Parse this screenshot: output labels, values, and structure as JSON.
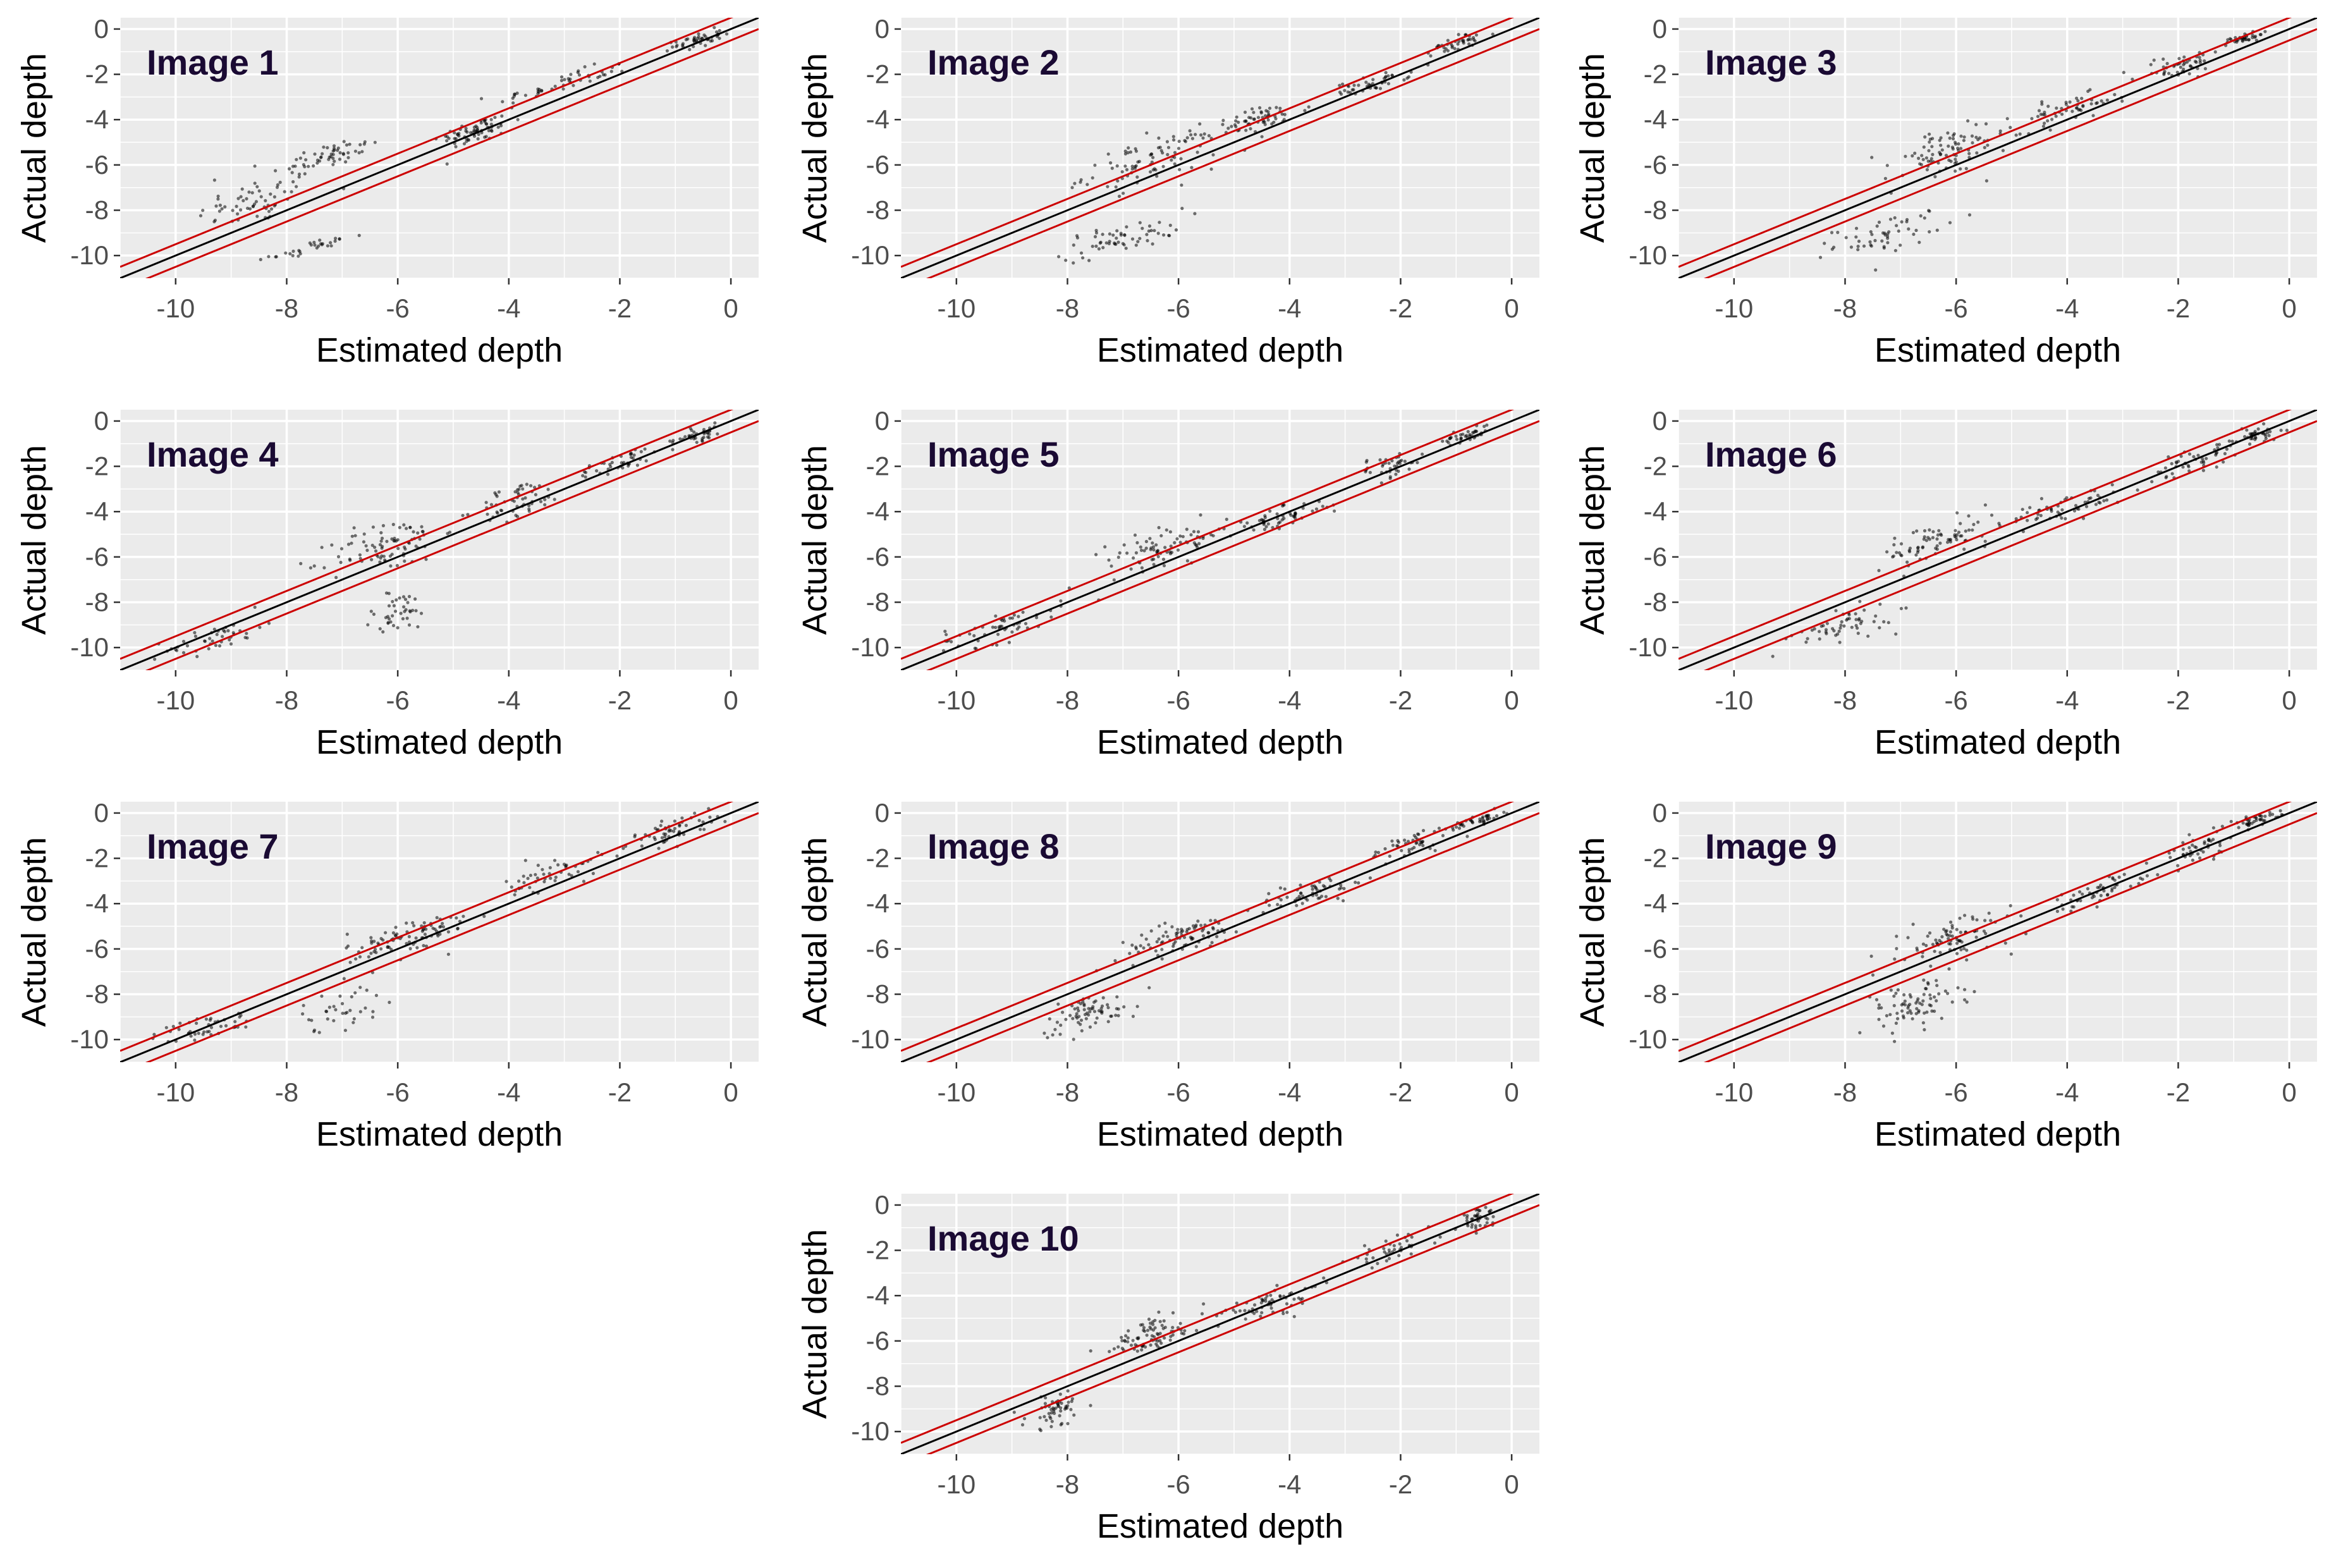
{
  "figure": {
    "x_axis_label": "Estimated depth",
    "y_axis_label": "Actual depth",
    "x_ticks": [
      -10,
      -8,
      -6,
      -4,
      -2,
      0
    ],
    "y_ticks": [
      0,
      -2,
      -4,
      -6,
      -8,
      -10
    ],
    "colors": {
      "panel_background": "#ebebeb",
      "grid": "#ffffff",
      "points": "#000000",
      "identity_line": "#000000",
      "band_lines": "#cc0000",
      "tick_text": "#4d4d4d",
      "axis_title": "#000000"
    }
  },
  "chart_data": [
    {
      "type": "scatter",
      "title": "Image 1",
      "xlabel": "Estimated depth",
      "ylabel": "Actual depth",
      "xlim": [
        -11,
        0.5
      ],
      "ylim": [
        -11,
        0.5
      ],
      "reference_lines": {
        "identity": "y = x",
        "band_offsets": [
          -0.5,
          0.5
        ]
      },
      "cloud": [
        [
          -8.5,
          -7.6,
          1.0,
          0.9,
          60
        ],
        [
          -7.3,
          -5.6,
          0.9,
          0.5,
          55
        ],
        [
          -4.6,
          -4.5,
          0.6,
          0.5,
          70
        ],
        [
          -3.0,
          -2.4,
          1.1,
          0.4,
          50
        ],
        [
          -0.6,
          -0.5,
          0.4,
          0.3,
          45
        ],
        [
          -7.5,
          -9.6,
          0.7,
          0.2,
          30
        ]
      ]
    },
    {
      "type": "scatter",
      "title": "Image 2",
      "xlabel": "Estimated depth",
      "ylabel": "Actual depth",
      "xlim": [
        -11,
        0.5
      ],
      "ylim": [
        -11,
        0.5
      ],
      "reference_lines": {
        "identity": "y = x",
        "band_offsets": [
          -0.5,
          0.5
        ]
      },
      "cloud": [
        [
          -7.0,
          -9.2,
          1.0,
          0.6,
          60
        ],
        [
          -6.5,
          -5.8,
          1.1,
          0.9,
          90
        ],
        [
          -4.5,
          -4.0,
          0.8,
          0.5,
          60
        ],
        [
          -2.5,
          -2.4,
          0.6,
          0.3,
          45
        ],
        [
          -1.0,
          -0.6,
          0.4,
          0.3,
          40
        ]
      ]
    },
    {
      "type": "scatter",
      "title": "Image 3",
      "xlabel": "Estimated depth",
      "ylabel": "Actual depth",
      "xlim": [
        -11,
        0.5
      ],
      "ylim": [
        -11,
        0.5
      ],
      "reference_lines": {
        "identity": "y = x",
        "band_offsets": [
          -0.5,
          0.5
        ]
      },
      "cloud": [
        [
          -7.2,
          -9.0,
          0.9,
          0.7,
          55
        ],
        [
          -6.2,
          -5.5,
          1.0,
          1.0,
          90
        ],
        [
          -4.0,
          -3.6,
          0.8,
          0.5,
          55
        ],
        [
          -2.0,
          -1.6,
          0.7,
          0.5,
          50
        ],
        [
          -0.8,
          -0.4,
          0.3,
          0.2,
          35
        ]
      ]
    },
    {
      "type": "scatter",
      "title": "Image 4",
      "xlabel": "Estimated depth",
      "ylabel": "Actual depth",
      "xlim": [
        -11,
        0.5
      ],
      "ylim": [
        -11,
        0.5
      ],
      "reference_lines": {
        "identity": "y = x",
        "band_offsets": [
          -0.5,
          0.5
        ]
      },
      "cloud": [
        [
          -9.3,
          -9.6,
          0.8,
          0.5,
          45
        ],
        [
          -6.2,
          -5.5,
          0.9,
          1.0,
          85
        ],
        [
          -6.0,
          -8.5,
          0.6,
          0.9,
          40
        ],
        [
          -3.8,
          -3.5,
          0.7,
          0.7,
          55
        ],
        [
          -2.0,
          -1.8,
          0.7,
          0.4,
          40
        ],
        [
          -0.6,
          -0.6,
          0.4,
          0.3,
          40
        ]
      ]
    },
    {
      "type": "scatter",
      "title": "Image 5",
      "xlabel": "Estimated depth",
      "ylabel": "Actual depth",
      "xlim": [
        -11,
        0.5
      ],
      "ylim": [
        -11,
        0.5
      ],
      "reference_lines": {
        "identity": "y = x",
        "band_offsets": [
          -0.5,
          0.5
        ]
      },
      "cloud": [
        [
          -9.2,
          -9.1,
          1.0,
          0.6,
          55
        ],
        [
          -6.2,
          -5.5,
          1.0,
          0.7,
          80
        ],
        [
          -4.2,
          -4.3,
          0.8,
          0.4,
          55
        ],
        [
          -2.2,
          -2.0,
          0.6,
          0.5,
          40
        ],
        [
          -0.8,
          -0.6,
          0.4,
          0.3,
          40
        ]
      ]
    },
    {
      "type": "scatter",
      "title": "Image 6",
      "xlabel": "Estimated depth",
      "ylabel": "Actual depth",
      "xlim": [
        -11,
        0.5
      ],
      "ylim": [
        -11,
        0.5
      ],
      "reference_lines": {
        "identity": "y = x",
        "band_offsets": [
          -0.5,
          0.5
        ]
      },
      "cloud": [
        [
          -8.0,
          -9.0,
          0.8,
          0.6,
          55
        ],
        [
          -6.3,
          -5.3,
          1.0,
          0.8,
          80
        ],
        [
          -4.0,
          -3.8,
          0.9,
          0.5,
          55
        ],
        [
          -1.8,
          -1.8,
          0.7,
          0.5,
          45
        ],
        [
          -0.6,
          -0.6,
          0.4,
          0.3,
          40
        ]
      ]
    },
    {
      "type": "scatter",
      "title": "Image 7",
      "xlabel": "Estimated depth",
      "ylabel": "Actual depth",
      "xlim": [
        -11,
        0.5
      ],
      "ylim": [
        -11,
        0.5
      ],
      "reference_lines": {
        "identity": "y = x",
        "band_offsets": [
          -0.5,
          0.5
        ]
      },
      "cloud": [
        [
          -9.5,
          -9.5,
          0.8,
          0.5,
          45
        ],
        [
          -7.0,
          -8.6,
          0.7,
          0.8,
          35
        ],
        [
          -5.8,
          -5.5,
          1.0,
          0.8,
          90
        ],
        [
          -3.2,
          -2.7,
          0.8,
          0.6,
          50
        ],
        [
          -1.0,
          -0.7,
          0.7,
          0.5,
          55
        ]
      ]
    },
    {
      "type": "scatter",
      "title": "Image 8",
      "xlabel": "Estimated depth",
      "ylabel": "Actual depth",
      "xlim": [
        -11,
        0.5
      ],
      "ylim": [
        -11,
        0.5
      ],
      "reference_lines": {
        "identity": "y = x",
        "band_offsets": [
          -0.5,
          0.5
        ]
      },
      "cloud": [
        [
          -7.6,
          -8.8,
          0.8,
          0.7,
          70
        ],
        [
          -6.0,
          -5.5,
          1.0,
          0.6,
          85
        ],
        [
          -3.6,
          -3.5,
          0.9,
          0.5,
          55
        ],
        [
          -1.8,
          -1.4,
          0.7,
          0.5,
          45
        ],
        [
          -0.6,
          -0.3,
          0.4,
          0.2,
          40
        ]
      ]
    },
    {
      "type": "scatter",
      "title": "Image 9",
      "xlabel": "Estimated depth",
      "ylabel": "Actual depth",
      "xlim": [
        -11,
        0.5
      ],
      "ylim": [
        -11,
        0.5
      ],
      "reference_lines": {
        "identity": "y = x",
        "band_offsets": [
          -0.5,
          0.5
        ]
      },
      "cloud": [
        [
          -6.8,
          -8.5,
          0.9,
          1.0,
          80
        ],
        [
          -6.0,
          -5.5,
          0.9,
          0.8,
          80
        ],
        [
          -3.5,
          -3.5,
          0.9,
          0.5,
          50
        ],
        [
          -1.6,
          -1.5,
          0.7,
          0.6,
          45
        ],
        [
          -0.6,
          -0.3,
          0.4,
          0.2,
          40
        ]
      ]
    },
    {
      "type": "scatter",
      "title": "Image 10",
      "xlabel": "Estimated depth",
      "ylabel": "Actual depth",
      "xlim": [
        -11,
        0.5
      ],
      "ylim": [
        -11,
        0.5
      ],
      "reference_lines": {
        "identity": "y = x",
        "band_offsets": [
          -0.5,
          0.5
        ]
      },
      "cloud": [
        [
          -8.2,
          -9.0,
          0.5,
          0.7,
          55
        ],
        [
          -6.5,
          -5.8,
          0.9,
          0.7,
          85
        ],
        [
          -4.3,
          -4.3,
          0.8,
          0.5,
          60
        ],
        [
          -2.2,
          -2.0,
          0.7,
          0.4,
          40
        ],
        [
          -0.6,
          -0.6,
          0.3,
          0.4,
          40
        ]
      ]
    }
  ]
}
